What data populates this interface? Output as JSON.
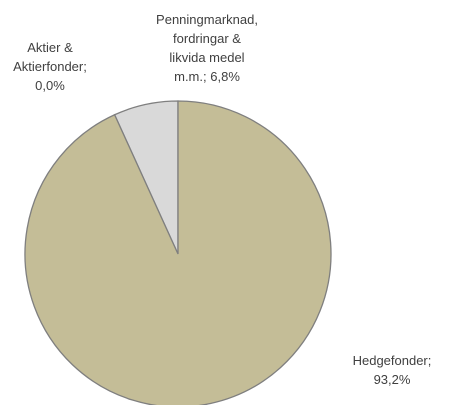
{
  "chart_data": {
    "type": "pie",
    "categories": [
      "Aktier & Aktierfonder",
      "Penningmarknad, fordringar & likvida medel m.m.",
      "Hedgefonder"
    ],
    "values": [
      0,
      6.8,
      93.2
    ],
    "value_labels": [
      "0,0%",
      "6,8%",
      "93,2%"
    ],
    "colors": [
      "#4f81bd",
      "#d9d9d9",
      "#c4bd97"
    ]
  }
}
